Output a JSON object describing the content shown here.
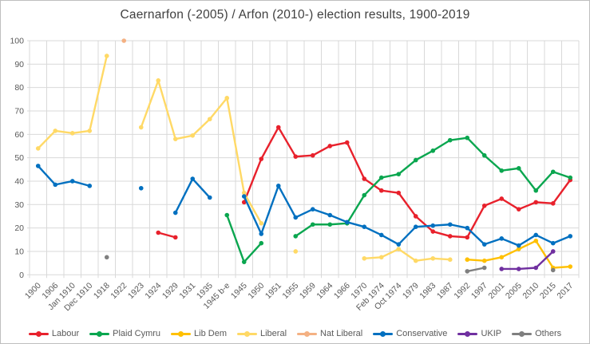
{
  "title": "Caernarfon (-2005) / Arfon (2010-) election results, 1900-2019",
  "colors": {
    "gridline": "#D9D9D9",
    "axis_text": "#595959",
    "title_text": "#404040"
  },
  "chart_data": {
    "type": "line",
    "title": "Caernarfon (-2005) / Arfon (2010-) election results, 1900-2019",
    "xlabel": "",
    "ylabel": "",
    "ylim": [
      0,
      100
    ],
    "y_tick_step": 10,
    "grid": true,
    "legend_position": "bottom",
    "categories": [
      "1900",
      "1906",
      "Jan 1910",
      "Dec 1910",
      "1918",
      "1922",
      "1923",
      "1924",
      "1929",
      "1931",
      "1935",
      "1945 b-e",
      "1945",
      "1950",
      "1951",
      "1955",
      "1959",
      "1964",
      "1966",
      "1970",
      "Feb 1974",
      "Oct 1974",
      "1979",
      "1983",
      "1987",
      "1992",
      "1997",
      "2001",
      "2005",
      "2010",
      "2015",
      "2017"
    ],
    "series": [
      {
        "name": "Labour",
        "color": "#E8212C",
        "values": [
          null,
          null,
          null,
          null,
          null,
          null,
          null,
          18,
          16,
          null,
          null,
          null,
          31,
          49.5,
          63,
          50.5,
          51,
          55,
          56.5,
          41,
          36,
          35,
          25,
          18.5,
          16.5,
          16,
          29.5,
          32.5,
          28,
          31,
          30.5,
          40.5
        ]
      },
      {
        "name": "Plaid Cymru",
        "color": "#0AA64F",
        "values": [
          null,
          null,
          null,
          null,
          null,
          null,
          null,
          null,
          null,
          null,
          null,
          25.5,
          5.5,
          13.5,
          null,
          16.5,
          21.5,
          21.5,
          22,
          34,
          41.5,
          43,
          49,
          53,
          57.5,
          58.5,
          51,
          44.5,
          45.5,
          36,
          44,
          41.5
        ]
      },
      {
        "name": "Lib Dem",
        "color": "#FFC000",
        "values": [
          null,
          null,
          null,
          null,
          null,
          null,
          null,
          null,
          null,
          null,
          null,
          null,
          null,
          null,
          null,
          null,
          null,
          null,
          null,
          null,
          null,
          null,
          null,
          null,
          null,
          6.5,
          6,
          7.5,
          11,
          14.5,
          3,
          3.5
        ]
      },
      {
        "name": "Liberal",
        "color": "#FFD966",
        "values": [
          54,
          61.5,
          60.5,
          61.5,
          93.5,
          null,
          63,
          83,
          58,
          59.5,
          66.5,
          75.5,
          35,
          22,
          null,
          10,
          null,
          null,
          null,
          7,
          7.5,
          11,
          6,
          7,
          6.5,
          null,
          null,
          null,
          null,
          null,
          null,
          null
        ]
      },
      {
        "name": "Nat Liberal",
        "color": "#F4B183",
        "values": [
          null,
          null,
          null,
          null,
          null,
          100,
          null,
          null,
          null,
          null,
          null,
          null,
          null,
          null,
          null,
          null,
          null,
          null,
          null,
          null,
          null,
          null,
          null,
          null,
          null,
          null,
          null,
          null,
          null,
          null,
          null,
          null
        ]
      },
      {
        "name": "Conservative",
        "color": "#0070C0",
        "values": [
          46.5,
          38.5,
          40,
          38,
          null,
          null,
          37,
          null,
          26.5,
          41,
          33,
          null,
          33.5,
          17.5,
          38,
          24.5,
          28,
          25.5,
          22.5,
          20.5,
          17,
          13,
          20.5,
          21,
          21.5,
          20,
          13,
          15.5,
          12.5,
          17,
          13.5,
          16.5
        ]
      },
      {
        "name": "UKIP",
        "color": "#7030A0",
        "values": [
          null,
          null,
          null,
          null,
          null,
          null,
          null,
          null,
          null,
          null,
          null,
          null,
          null,
          null,
          null,
          null,
          null,
          null,
          null,
          null,
          null,
          null,
          null,
          null,
          null,
          null,
          null,
          2.5,
          2.5,
          3,
          10,
          null
        ]
      },
      {
        "name": "Others",
        "color": "#7F7F7F",
        "values": [
          null,
          null,
          null,
          null,
          7.5,
          null,
          null,
          null,
          null,
          null,
          null,
          null,
          null,
          null,
          null,
          null,
          null,
          null,
          null,
          null,
          null,
          null,
          null,
          null,
          null,
          1.5,
          3,
          null,
          null,
          null,
          2,
          null
        ]
      }
    ]
  }
}
